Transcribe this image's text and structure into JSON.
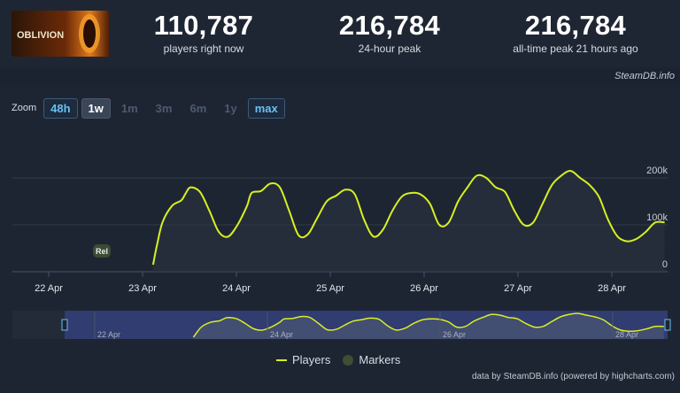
{
  "header": {
    "game_logo_text": "OBLIVION",
    "stats": [
      {
        "value": "110,787",
        "label": "players right now"
      },
      {
        "value": "216,784",
        "label": "24-hour peak"
      },
      {
        "value": "216,784",
        "label": "all-time peak 21 hours ago"
      }
    ]
  },
  "credit_top": "SteamDB.info",
  "zoom": {
    "label": "Zoom",
    "buttons": [
      "48h",
      "1w",
      "1m",
      "3m",
      "6m",
      "1y",
      "max"
    ],
    "active": "1w"
  },
  "legend": {
    "players": "Players",
    "markers": "Markers"
  },
  "marker_label": "Rel",
  "footer_credit": "data by SteamDB.info (powered by highcharts.com)",
  "colors": {
    "line": "#d7f021",
    "accent_blue": "#67c1f5",
    "background": "#1b2230"
  },
  "chart_data": {
    "type": "line",
    "xlabel": "",
    "ylabel": "",
    "x_tick_labels": [
      "22 Apr",
      "23 Apr",
      "24 Apr",
      "25 Apr",
      "26 Apr",
      "27 Apr",
      "28 Apr"
    ],
    "y_tick_labels": [
      "0",
      "100k",
      "200k"
    ],
    "ylim": [
      0,
      220000
    ],
    "navigator_tick_labels": [
      "22 Apr",
      "24 Apr",
      "26 Apr",
      "28 Apr"
    ],
    "series": [
      {
        "name": "Players",
        "x_days": [
          0.0,
          0.04,
          0.1,
          0.2,
          0.3,
          0.35,
          0.4,
          0.5,
          0.6,
          0.7,
          0.8,
          0.9,
          1.0,
          1.05,
          1.15,
          1.25,
          1.35,
          1.45,
          1.55,
          1.65,
          1.75,
          1.85,
          1.95,
          2.05,
          2.15,
          2.25,
          2.35,
          2.45,
          2.55,
          2.65,
          2.75,
          2.85,
          2.95,
          3.05,
          3.15,
          3.25,
          3.35,
          3.45,
          3.55,
          3.65,
          3.75,
          3.85,
          3.95,
          4.05,
          4.15,
          4.25,
          4.35,
          4.45,
          4.55,
          4.65,
          4.75,
          4.85,
          4.95,
          5.05,
          5.15,
          5.25,
          5.35,
          5.45,
          5.55,
          5.65,
          5.75,
          5.85,
          5.95,
          6.05
        ],
        "values": [
          15000,
          55000,
          105000,
          140000,
          152000,
          168000,
          180000,
          170000,
          130000,
          85000,
          75000,
          100000,
          140000,
          168000,
          172000,
          188000,
          180000,
          130000,
          78000,
          80000,
          115000,
          150000,
          162000,
          175000,
          165000,
          110000,
          75000,
          90000,
          130000,
          160000,
          168000,
          165000,
          145000,
          100000,
          105000,
          150000,
          180000,
          205000,
          200000,
          180000,
          170000,
          130000,
          100000,
          105000,
          145000,
          185000,
          205000,
          215000,
          200000,
          185000,
          160000,
          110000,
          75000,
          65000,
          70000,
          85000,
          105000,
          105000,
          105000,
          105000,
          105000,
          105000,
          105000,
          105000
        ]
      }
    ]
  }
}
